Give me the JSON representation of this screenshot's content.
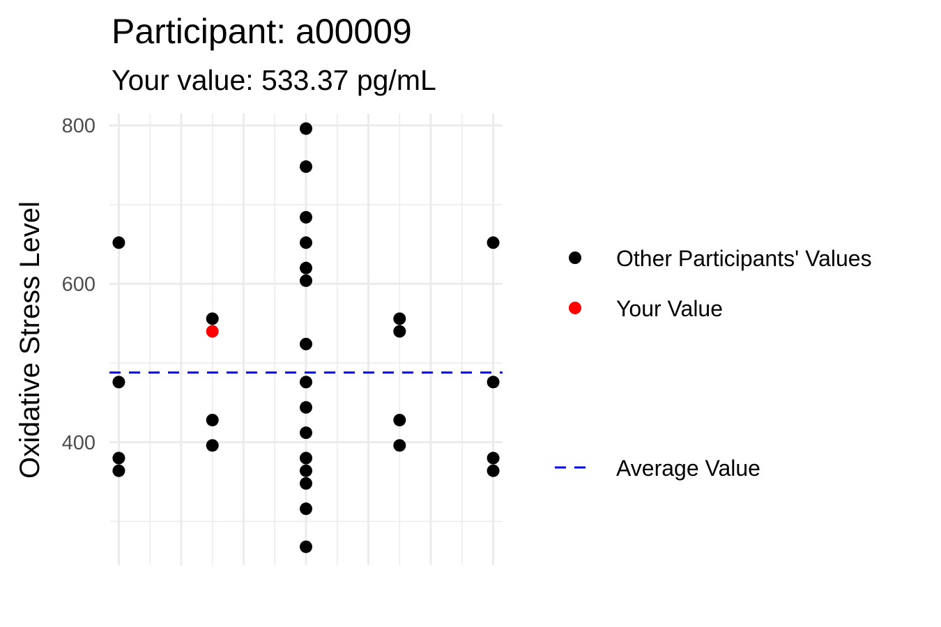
{
  "chart_data": {
    "type": "scatter",
    "title": "Participant: a00009",
    "subtitle": "Your value: 533.37 pg/mL",
    "xlabel": "",
    "ylabel": "Oxidative Stress Level",
    "ylim": [
      245,
      815
    ],
    "xlim": [
      0.85,
      7.15
    ],
    "yticks": [
      400,
      600,
      800
    ],
    "y_tick_labels": [
      "400",
      "600",
      "800"
    ],
    "grid": true,
    "legend_position": "right",
    "series": [
      {
        "name": "Other Participants' Values",
        "color": "#000000",
        "points": [
          {
            "x": 1,
            "y": 652
          },
          {
            "x": 1,
            "y": 476
          },
          {
            "x": 1,
            "y": 380
          },
          {
            "x": 1,
            "y": 364
          },
          {
            "x": 2.5,
            "y": 556
          },
          {
            "x": 2.5,
            "y": 428
          },
          {
            "x": 2.5,
            "y": 396
          },
          {
            "x": 4,
            "y": 796
          },
          {
            "x": 4,
            "y": 748
          },
          {
            "x": 4,
            "y": 684
          },
          {
            "x": 4,
            "y": 652
          },
          {
            "x": 4,
            "y": 620
          },
          {
            "x": 4,
            "y": 604
          },
          {
            "x": 4,
            "y": 524
          },
          {
            "x": 4,
            "y": 476
          },
          {
            "x": 4,
            "y": 444
          },
          {
            "x": 4,
            "y": 412
          },
          {
            "x": 4,
            "y": 380
          },
          {
            "x": 4,
            "y": 364
          },
          {
            "x": 4,
            "y": 348
          },
          {
            "x": 4,
            "y": 316
          },
          {
            "x": 4,
            "y": 268
          },
          {
            "x": 5.5,
            "y": 556
          },
          {
            "x": 5.5,
            "y": 540
          },
          {
            "x": 5.5,
            "y": 428
          },
          {
            "x": 5.5,
            "y": 396
          },
          {
            "x": 7,
            "y": 652
          },
          {
            "x": 7,
            "y": 476
          },
          {
            "x": 7,
            "y": 380
          },
          {
            "x": 7,
            "y": 364
          }
        ]
      },
      {
        "name": "Your Value",
        "color": "#ff0000",
        "points": [
          {
            "x": 2.5,
            "y": 540
          }
        ]
      }
    ],
    "average": {
      "name": "Average Value",
      "value": 488,
      "color": "#0000ff",
      "style": "dashed"
    }
  }
}
